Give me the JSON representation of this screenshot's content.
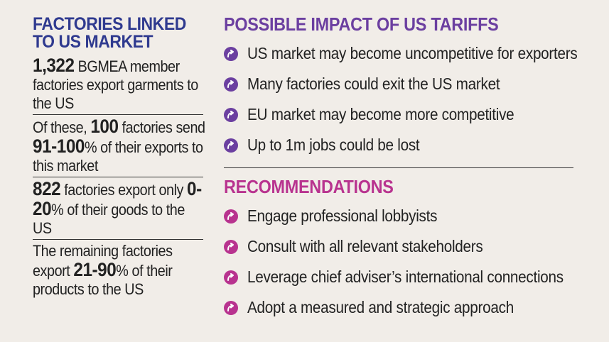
{
  "left": {
    "title_line1": "FACTORIES LINKED",
    "title_line2": "TO US MARKET",
    "stats": [
      {
        "pre": "",
        "num": "1,322",
        "mid": " BGMEA member factories export garments to the US",
        "num2": "",
        "post": ""
      },
      {
        "pre": "Of these, ",
        "num": "100",
        "mid": " factories send ",
        "num2": "91-100",
        "post": "% of their exports to this market"
      },
      {
        "pre": "",
        "num": "822",
        "mid": " factories export only ",
        "num2": "0-20",
        "post": "% of their goods to the US"
      },
      {
        "pre": "The remaining factories export ",
        "num": "21-90",
        "mid": "% of their products to the US",
        "num2": "",
        "post": ""
      }
    ]
  },
  "impact": {
    "title": "POSSIBLE IMPACT OF US TARIFFS",
    "items": [
      "US market may become uncompetitive for exporters",
      "Many factories could exit the US market",
      "EU market may become more competitive",
      "Up to 1m jobs could be lost"
    ]
  },
  "recommendations": {
    "title": "RECOMMENDATIONS",
    "items": [
      "Engage professional lobbyists",
      "Consult with all relevant stakeholders",
      "Leverage chief adviser’s international connections",
      "Adopt a measured and strategic approach"
    ]
  },
  "colors": {
    "left_title": "#2f3a8f",
    "impact": "#6b3fa0",
    "recommendations": "#b8338f",
    "background": "#f1ede8"
  },
  "icons": {
    "bullet": "curved-arrow-icon"
  }
}
